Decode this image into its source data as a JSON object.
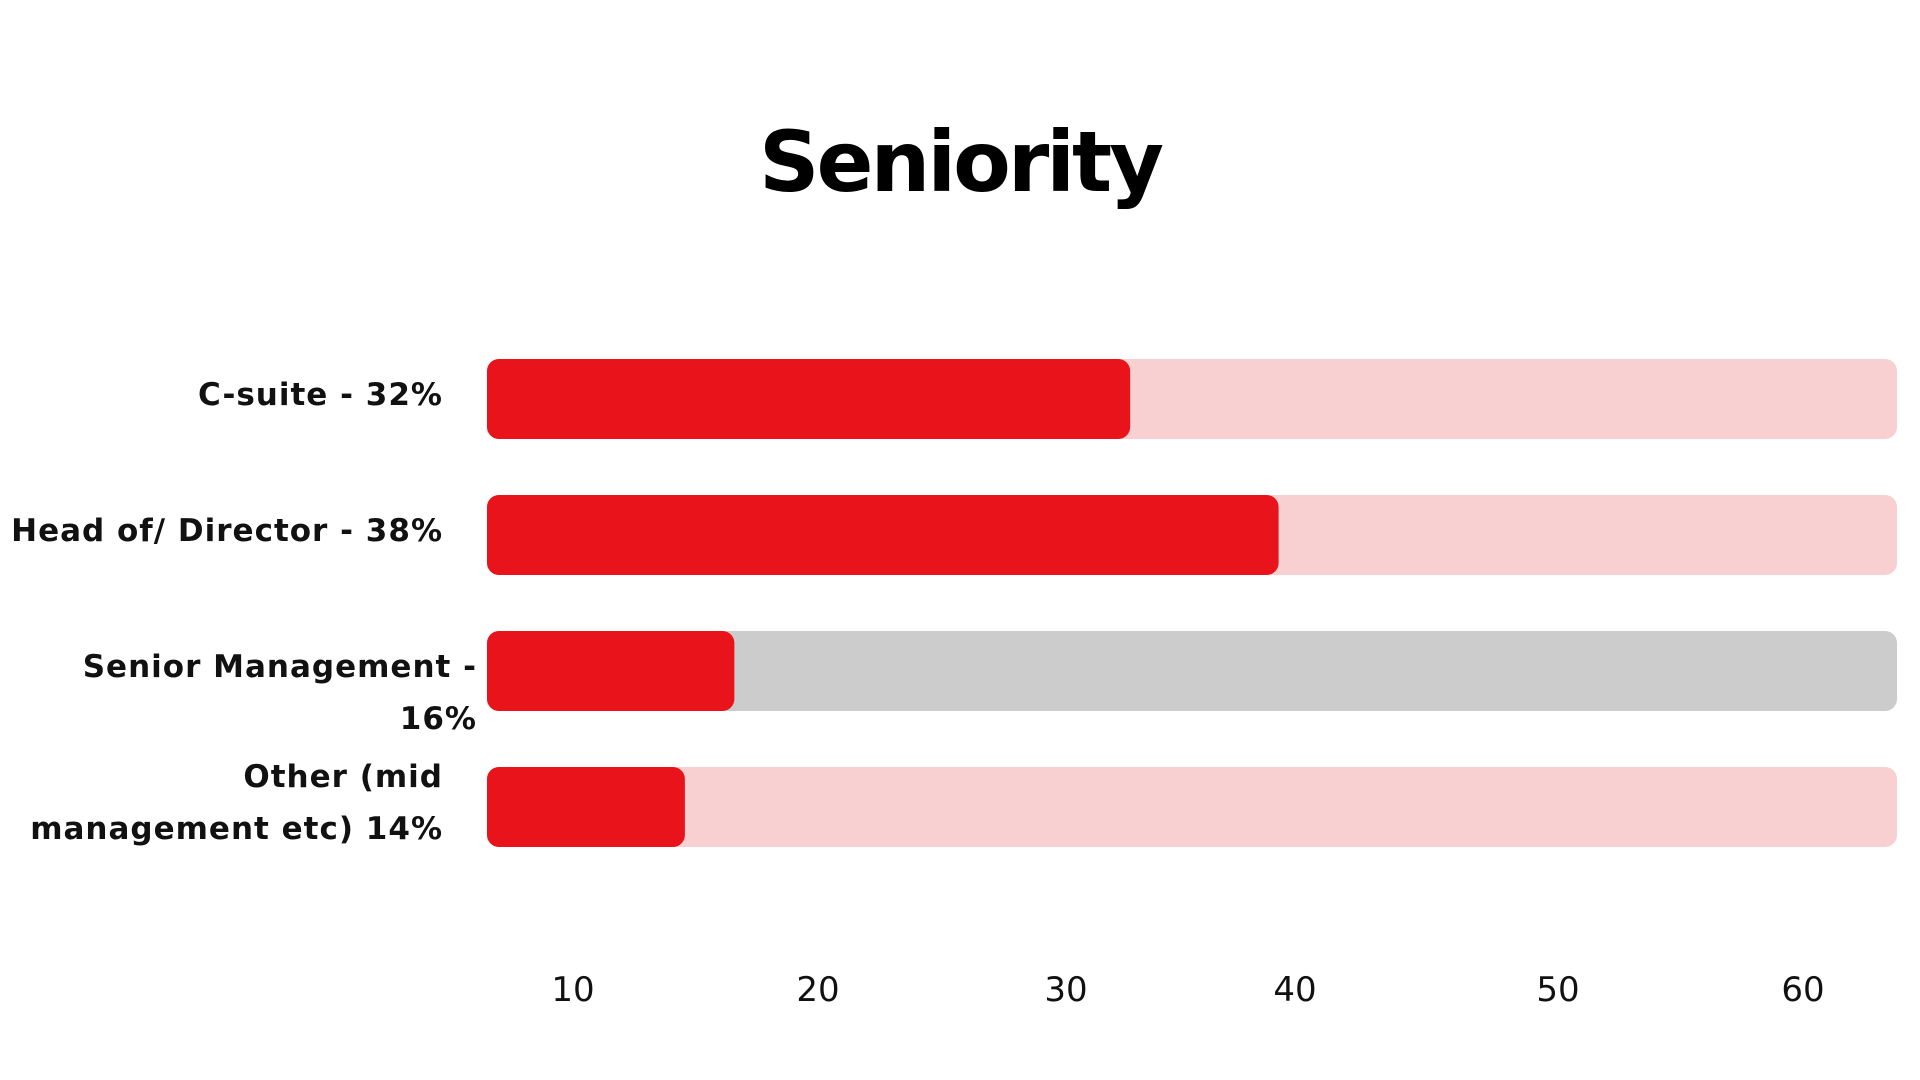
{
  "chart_data": {
    "type": "bar",
    "orientation": "horizontal",
    "title": "Seniority",
    "categories": [
      "C-suite - 32%",
      "Head of/ Director - 38%",
      "Senior Management - 16%",
      "Other (mid management etc) 14%"
    ],
    "category_lines": [
      [
        "C-suite - 32%"
      ],
      [
        "Head of/ Director - 38%"
      ],
      [
        "Senior Management - 16%"
      ],
      [
        "Other (mid",
        "management etc) 14%"
      ]
    ],
    "values": [
      32,
      38,
      16,
      14
    ],
    "xlim": [
      6,
      63
    ],
    "x_ticks": [
      10,
      20,
      30,
      40,
      50,
      60
    ],
    "grid": false,
    "colors": {
      "bar": "#e8131b",
      "track": "#f8d0d2",
      "track_highlight": "#cccccc"
    },
    "track_colors": [
      "#f8d0d2",
      "#f8d0d2",
      "#cccccc",
      "#f8d0d2"
    ]
  }
}
